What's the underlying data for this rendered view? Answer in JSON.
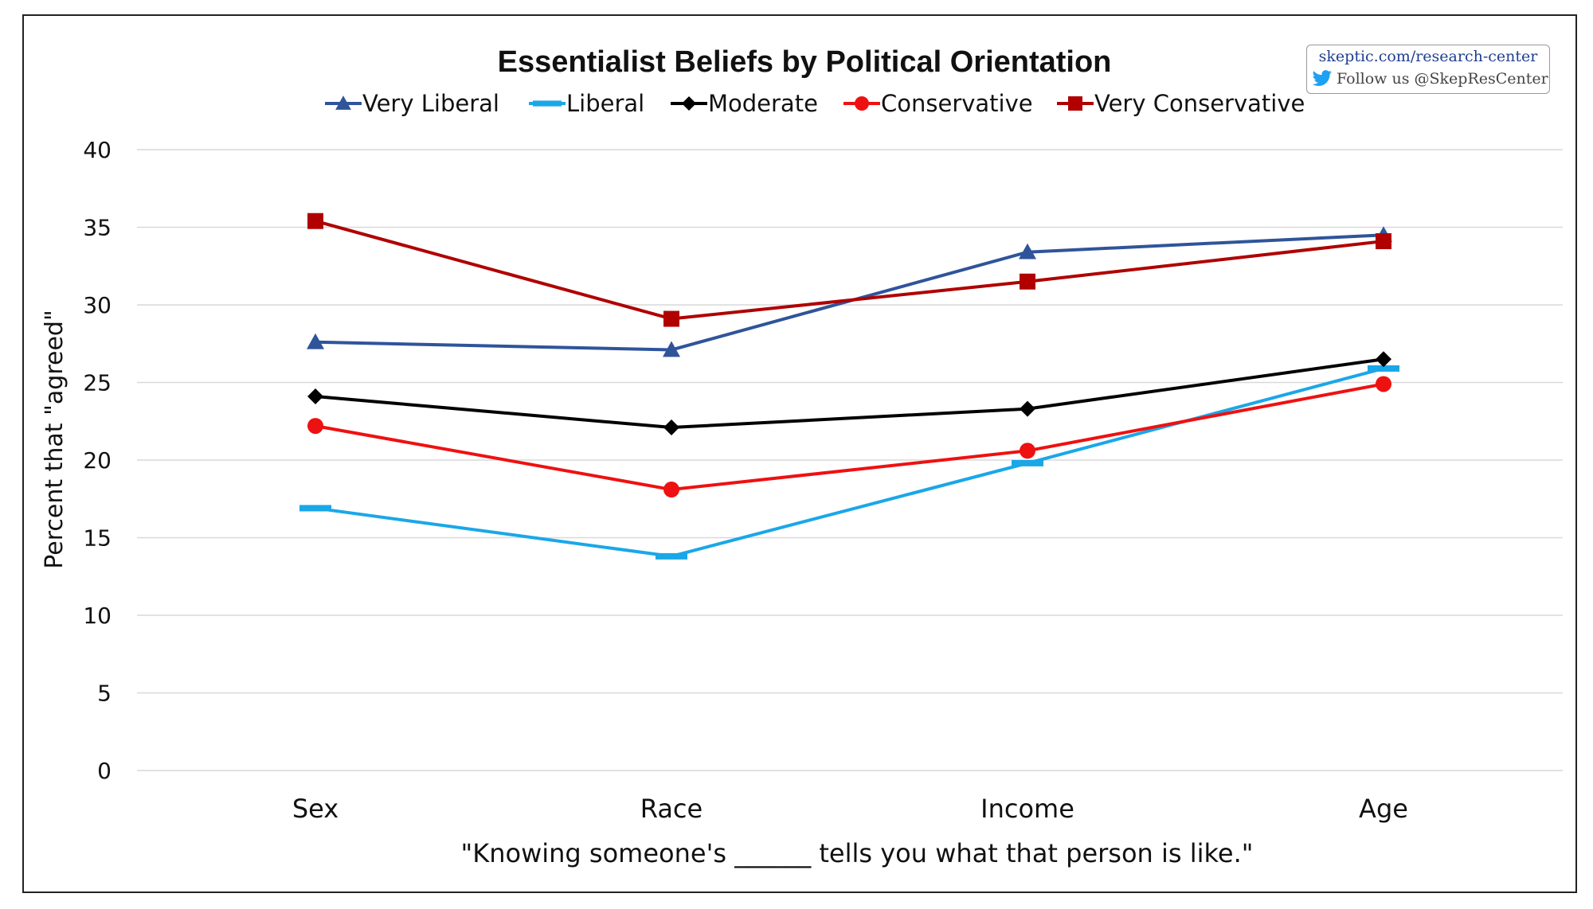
{
  "chart_data": {
    "type": "line",
    "title": "Essentialist Beliefs by Political Orientation",
    "xlabel": "\"Knowing someone's ______ tells you what that person is like.\"",
    "ylabel": "Percent that \"agreed\"",
    "ylim": [
      0,
      40
    ],
    "yticks": [
      0,
      5,
      10,
      15,
      20,
      25,
      30,
      35,
      40
    ],
    "categories": [
      "Sex",
      "Race",
      "Income",
      "Age"
    ],
    "grid": true,
    "legend_position": "top",
    "series": [
      {
        "name": "Very Liberal",
        "color": "#2f549a",
        "marker": "triangle",
        "values": [
          27.6,
          27.1,
          33.4,
          34.5
        ]
      },
      {
        "name": "Liberal",
        "color": "#1aa7e8",
        "marker": "dash",
        "values": [
          16.9,
          13.8,
          19.8,
          25.9
        ]
      },
      {
        "name": "Moderate",
        "color": "#000000",
        "marker": "diamond",
        "values": [
          24.1,
          22.1,
          23.3,
          26.5
        ]
      },
      {
        "name": "Conservative",
        "color": "#ee1111",
        "marker": "circle",
        "values": [
          22.2,
          18.1,
          20.6,
          24.9
        ]
      },
      {
        "name": "Very Conservative",
        "color": "#b00000",
        "marker": "square",
        "values": [
          35.4,
          29.1,
          31.5,
          34.1
        ]
      }
    ]
  },
  "watermark": {
    "url": "skeptic.com/research-center",
    "follow": "Follow us @SkepResCenter",
    "icon": "twitter-bird-icon",
    "icon_color": "#1da1f2"
  }
}
